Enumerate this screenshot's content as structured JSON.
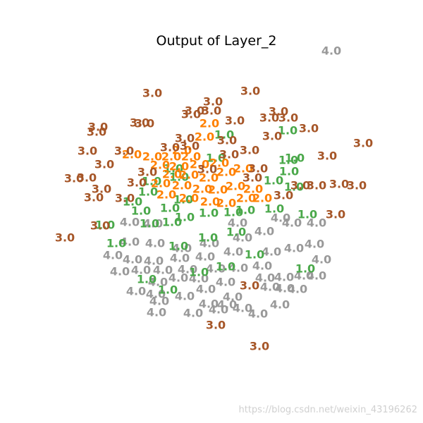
{
  "chart_data": {
    "type": "scatter",
    "title": "Output of Layer_2",
    "xlabel": "",
    "ylabel": "",
    "axes_visible": false,
    "grid": false,
    "legend": "none",
    "marker": "text labels",
    "xlim": [
      0,
      600
    ],
    "ylim": [
      600,
      0
    ],
    "colors": {
      "1.0": "#4aa84a",
      "2.0": "#ff8000",
      "3.0": "#a65628",
      "4.0": "#999999"
    },
    "series": [
      {
        "name": "",
        "label": "4.0",
        "points": [
          [
            222,
            156
          ],
          [
            274,
            155
          ],
          [
            310,
            160
          ],
          [
            366,
            154
          ],
          [
            397,
            167
          ],
          [
            226,
            172
          ],
          [
            262,
            179
          ],
          [
            296,
            168
          ],
          [
            322,
            167
          ],
          [
            344,
            162
          ],
          [
            193,
            186
          ],
          [
            221,
            182
          ],
          [
            292,
            189
          ],
          [
            330,
            178
          ],
          [
            383,
            192
          ],
          [
            404,
            190
          ],
          [
            422,
            189
          ],
          [
            224,
            199
          ],
          [
            253,
            205
          ],
          [
            282,
            204
          ],
          [
            320,
            199
          ],
          [
            376,
            205
          ],
          [
            403,
            206
          ],
          [
            431,
            208
          ],
          [
            449,
            208
          ],
          [
            170,
            214
          ],
          [
            200,
            216
          ],
          [
            231,
            216
          ],
          [
            266,
            217
          ],
          [
            306,
            218
          ],
          [
            338,
            219
          ],
          [
            372,
            222
          ],
          [
            456,
            231
          ],
          [
            160,
            237
          ],
          [
            188,
            231
          ],
          [
            218,
            229
          ],
          [
            255,
            233
          ],
          [
            291,
            235
          ],
          [
            331,
            242
          ],
          [
            385,
            242
          ],
          [
            417,
            247
          ],
          [
            446,
            253
          ],
          [
            184,
            256
          ],
          [
            220,
            254
          ],
          [
            258,
            247
          ],
          [
            297,
            254
          ],
          [
            344,
            262
          ],
          [
            375,
            271
          ],
          [
            398,
            290
          ],
          [
            184,
            284
          ],
          [
            217,
            282
          ],
          [
            337,
            283
          ],
          [
            414,
            283
          ],
          [
            449,
            283
          ],
          [
            470,
            527
          ]
        ]
      },
      {
        "name": "",
        "label": "1.0",
        "points": [
          [
            238,
            188
          ],
          [
            208,
            203
          ],
          [
            282,
            213
          ],
          [
            320,
            221
          ],
          [
            433,
            218
          ],
          [
            165,
            254
          ],
          [
            253,
            250
          ],
          [
            295,
            262
          ],
          [
            335,
            270
          ],
          [
            361,
            238
          ],
          [
            149,
            280
          ],
          [
            212,
            282
          ],
          [
            244,
            284
          ],
          [
            262,
            291
          ],
          [
            296,
            297
          ],
          [
            331,
            298
          ],
          [
            348,
            301
          ],
          [
            389,
            303
          ],
          [
            436,
            295
          ],
          [
            200,
            300
          ],
          [
            188,
            313
          ],
          [
            241,
            304
          ],
          [
            260,
            316
          ],
          [
            210,
            327
          ],
          [
            388,
            343
          ],
          [
            215,
            342
          ],
          [
            254,
            348
          ],
          [
            417,
            334
          ],
          [
            410,
            356
          ],
          [
            246,
            360
          ],
          [
            306,
            375
          ],
          [
            409,
            372
          ],
          [
            418,
            375
          ],
          [
            318,
            408
          ],
          [
            408,
            414
          ]
        ]
      },
      {
        "name": "",
        "label": "2.0",
        "points": [
          [
            236,
            323
          ],
          [
            268,
            318
          ],
          [
            298,
            313
          ],
          [
            321,
            311
          ],
          [
            349,
            318
          ],
          [
            372,
            318
          ],
          [
            228,
            339
          ],
          [
            258,
            336
          ],
          [
            287,
            331
          ],
          [
            309,
            330
          ],
          [
            334,
            335
          ],
          [
            359,
            331
          ],
          [
            244,
            352
          ],
          [
            268,
            351
          ],
          [
            296,
            347
          ],
          [
            321,
            355
          ],
          [
            345,
            360
          ],
          [
            227,
            365
          ],
          [
            254,
            363
          ],
          [
            283,
            366
          ],
          [
            311,
            368
          ],
          [
            187,
            380
          ],
          [
            216,
            377
          ],
          [
            243,
            377
          ],
          [
            271,
            377
          ],
          [
            258,
            386
          ],
          [
            290,
            405
          ],
          [
            297,
            424
          ]
        ]
      },
      {
        "name": "",
        "label": "3.0",
        "points": [
          [
            368,
            108
          ],
          [
            306,
            138
          ],
          [
            354,
            194
          ],
          [
            92,
            262
          ],
          [
            142,
            279
          ],
          [
            476,
            295
          ],
          [
            133,
            319
          ],
          [
            177,
            318
          ],
          [
            144,
            331
          ],
          [
            402,
            322
          ],
          [
            426,
            336
          ],
          [
            449,
            336
          ],
          [
            481,
            338
          ],
          [
            506,
            336
          ],
          [
            105,
            346
          ],
          [
            123,
            347
          ],
          [
            194,
            340
          ],
          [
            148,
            366
          ],
          [
            209,
            355
          ],
          [
            358,
            347
          ],
          [
            294,
            359
          ],
          [
            366,
            360
          ],
          [
            464,
            378
          ],
          [
            124,
            385
          ],
          [
            176,
            385
          ],
          [
            241,
            390
          ],
          [
            269,
            392
          ],
          [
            325,
            380
          ],
          [
            354,
            386
          ],
          [
            515,
            396
          ],
          [
            137,
            412
          ],
          [
            262,
            403
          ],
          [
            322,
            400
          ],
          [
            386,
            406
          ],
          [
            205,
            424
          ],
          [
            139,
            419
          ],
          [
            198,
            425
          ],
          [
            333,
            428
          ],
          [
            382,
            432
          ],
          [
            409,
            432
          ],
          [
            438,
            417
          ],
          [
            271,
            437
          ],
          [
            300,
            442
          ],
          [
            395,
            441
          ],
          [
            276,
            442
          ],
          [
            302,
            455
          ],
          [
            355,
            470
          ],
          [
            216,
            467
          ]
        ]
      }
    ],
    "watermark": "https://blog.csdn.net/weixin_43196262"
  }
}
